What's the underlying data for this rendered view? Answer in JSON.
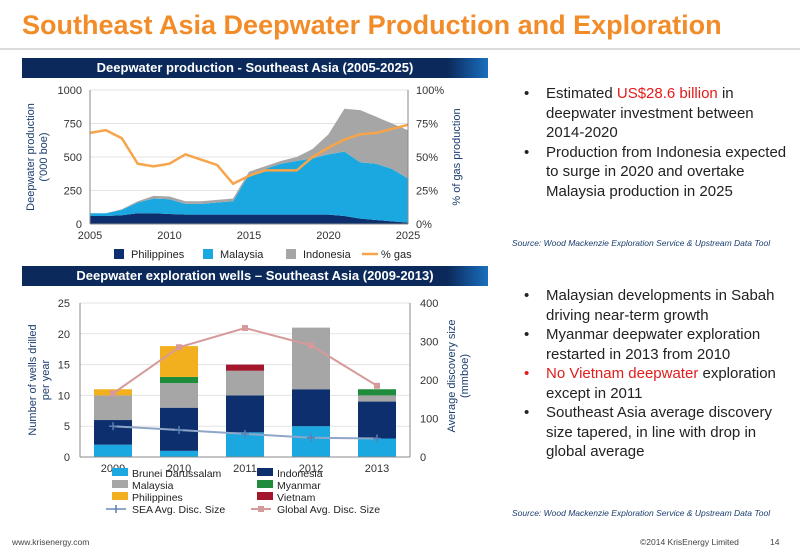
{
  "page": {
    "title": "Southeast Asia Deepwater Production and Exploration",
    "footer_left": "www.krisenergy.com",
    "footer_right": "©2014 KrisEnergy Limited",
    "page_number": "14"
  },
  "colors": {
    "title": "#f28c28",
    "header_bg": "#0b2a5b",
    "philippines_area": "#0d2f6e",
    "malaysia_area": "#1ba8e0",
    "indonesia_area": "#a6a6a6",
    "gas_line": "#f7a44a",
    "brunei": "#1ba8e0",
    "indonesia_bar": "#0d2f6e",
    "malaysia_bar": "#a6a6a6",
    "myanmar": "#1e8c3a",
    "philippines_bar": "#f2b01e",
    "vietnam": "#a3162c",
    "sea_line": "#8ea6c8",
    "global_line": "#d69a9a",
    "highlight": "#e21b1b"
  },
  "top_section": {
    "bullets": [
      {
        "pre": "Estimated ",
        "highlight": "US$28.6 billion",
        "post": " in deepwater investment between 2014-2020"
      },
      {
        "pre": "Production from Indonesia expected to surge in 2020 and overtake Malaysia production in 2025",
        "highlight": "",
        "post": ""
      }
    ],
    "source": "Source: Wood Mackenzie Exploration Service & Upstream Data Tool"
  },
  "bottom_section": {
    "bullets": [
      {
        "text": "Malaysian developments in Sabah driving near-term growth",
        "red": false
      },
      {
        "text": "Myanmar deepwater exploration restarted in 2013 from 2010",
        "red": false
      },
      {
        "text": "No Vietnam deepwater exploration except in 2011",
        "red": true,
        "red_part": "No Vietnam deepwater",
        "rest": " exploration except in 2011"
      },
      {
        "text": "Southeast Asia average discovery size tapered, in line with drop in global average",
        "red": false
      }
    ],
    "source": "Source: Wood Mackenzie Exploration Service & Upstream Data Tool"
  },
  "chart_data": [
    {
      "type": "area",
      "title": "Deepwater production - Southeast Asia (2005-2025)",
      "ylabel": "Deepwater production ('000 boe)",
      "y2label": "% of gas production",
      "ylim": [
        0,
        1000
      ],
      "y2lim": [
        0,
        100
      ],
      "x": [
        2005,
        2006,
        2007,
        2008,
        2009,
        2010,
        2011,
        2012,
        2013,
        2014,
        2015,
        2016,
        2017,
        2018,
        2019,
        2020,
        2021,
        2022,
        2023,
        2024,
        2025
      ],
      "xticks": [
        "2005",
        "2010",
        "2015",
        "2020",
        "2025"
      ],
      "yticks": [
        "0",
        "250",
        "500",
        "750",
        "1000"
      ],
      "y2ticks": [
        "0%",
        "25%",
        "50%",
        "75%",
        "100%"
      ],
      "stacked": true,
      "series": [
        {
          "name": "Philippines",
          "values": [
            60,
            60,
            65,
            80,
            80,
            75,
            70,
            70,
            70,
            70,
            70,
            70,
            70,
            70,
            70,
            70,
            60,
            40,
            30,
            20,
            10
          ]
        },
        {
          "name": "Malaysia",
          "values": [
            20,
            20,
            40,
            80,
            110,
            110,
            80,
            80,
            90,
            100,
            300,
            340,
            380,
            400,
            420,
            450,
            480,
            420,
            420,
            390,
            330
          ]
        },
        {
          "name": "Indonesia",
          "values": [
            0,
            0,
            5,
            10,
            20,
            20,
            20,
            20,
            20,
            20,
            20,
            20,
            20,
            30,
            70,
            150,
            320,
            390,
            350,
            340,
            360
          ]
        },
        {
          "name": "% gas",
          "axis": "y2",
          "values": [
            68,
            70,
            64,
            45,
            43,
            45,
            52,
            48,
            44,
            30,
            36,
            40,
            40,
            40,
            50,
            57,
            63,
            67,
            68,
            71,
            74
          ]
        }
      ],
      "legend": [
        "Philippines",
        "Malaysia",
        "Indonesia",
        "% gas"
      ],
      "legend_position": "bottom"
    },
    {
      "type": "bar",
      "title": "Deepwater exploration wells – Southeast Asia (2009-2013)",
      "ylabel": "Number of wells drilled per year",
      "y2label": "Average discovery size (mmboe)",
      "ylim": [
        0,
        25
      ],
      "y2lim": [
        0,
        400
      ],
      "categories": [
        "2009",
        "2010",
        "2011",
        "2012",
        "2013"
      ],
      "yticks": [
        "0",
        "5",
        "10",
        "15",
        "20",
        "25"
      ],
      "y2ticks": [
        "0",
        "100",
        "200",
        "300",
        "400"
      ],
      "stacked": true,
      "series": [
        {
          "name": "Brunei Darussalam",
          "values": [
            2,
            1,
            4,
            5,
            3
          ]
        },
        {
          "name": "Indonesia",
          "values": [
            4,
            7,
            6,
            6,
            6
          ]
        },
        {
          "name": "Malaysia",
          "values": [
            4,
            4,
            4,
            10,
            1
          ]
        },
        {
          "name": "Myanmar",
          "values": [
            0,
            1,
            0,
            0,
            1
          ]
        },
        {
          "name": "Philippines",
          "values": [
            1,
            5,
            0,
            0,
            0
          ]
        },
        {
          "name": "Vietnam",
          "values": [
            0,
            0,
            1,
            0,
            0
          ]
        },
        {
          "name": "SEA Avg. Disc. Size",
          "type": "line",
          "axis": "y2",
          "values": [
            80,
            70,
            60,
            50,
            48
          ]
        },
        {
          "name": "Global Avg. Disc. Size",
          "type": "line",
          "axis": "y2",
          "values": [
            165,
            285,
            335,
            290,
            185
          ]
        }
      ],
      "legend": [
        "Brunei Darussalam",
        "Indonesia",
        "Malaysia",
        "Myanmar",
        "Philippines",
        "Vietnam",
        "SEA Avg. Disc. Size",
        "Global Avg. Disc. Size"
      ],
      "legend_position": "bottom"
    }
  ]
}
